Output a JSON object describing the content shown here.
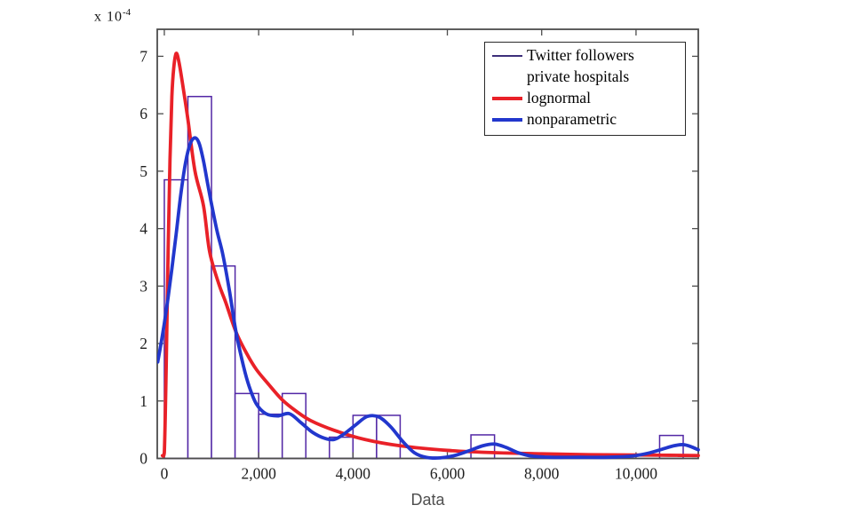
{
  "chart_data": {
    "type": "bar",
    "subtype": "histogram-with-fit-lines",
    "title": "",
    "xlabel": "Data",
    "offset_label": {
      "prefix": "x 10",
      "exponent": "-4"
    },
    "xlim": [
      -150,
      11320
    ],
    "ylim": [
      0,
      7.47
    ],
    "x_ticks": [
      0,
      2000,
      4000,
      6000,
      8000,
      10000
    ],
    "x_tick_labels": [
      "0",
      "2,000",
      "4,000",
      "6,000",
      "8,000",
      "10,000"
    ],
    "y_ticks": [
      0,
      1,
      2,
      3,
      4,
      5,
      6,
      7
    ],
    "y_tick_labels": [
      "0",
      "1",
      "2",
      "3",
      "4",
      "5",
      "6",
      "7"
    ],
    "y_unit_scale": "1e-4",
    "grid": false,
    "axis_color": "#4d4d4d",
    "tick_label_color": "#1f1f1f",
    "histogram": {
      "name": "Twitter followers private hospitals",
      "bin_start": 0,
      "bin_width": 500,
      "heights": [
        4.85,
        6.3,
        3.35,
        1.13,
        0.77,
        1.13,
        0,
        0.37,
        0.75,
        0.75,
        0,
        0,
        0,
        0.41,
        0,
        0,
        0,
        0,
        0,
        0,
        0,
        0.4
      ],
      "edge_color": "#5227a5",
      "face_color": "#ffffff"
    },
    "series": [
      {
        "name": "lognormal",
        "color": "#e92128",
        "line_width": 3.8,
        "points": [
          [
            -40,
            0.05
          ],
          [
            0,
            0.1
          ],
          [
            40,
            1.6
          ],
          [
            80,
            3.6
          ],
          [
            120,
            5.2
          ],
          [
            160,
            6.3
          ],
          [
            200,
            6.8
          ],
          [
            250,
            7.05
          ],
          [
            310,
            6.9
          ],
          [
            400,
            6.45
          ],
          [
            500,
            5.9
          ],
          [
            650,
            5.0
          ],
          [
            830,
            4.4
          ],
          [
            960,
            3.6
          ],
          [
            1150,
            3.05
          ],
          [
            1300,
            2.72
          ],
          [
            1520,
            2.2
          ],
          [
            1750,
            1.82
          ],
          [
            1950,
            1.55
          ],
          [
            2200,
            1.3
          ],
          [
            2500,
            1.02
          ],
          [
            2800,
            0.82
          ],
          [
            3100,
            0.66
          ],
          [
            3600,
            0.49
          ],
          [
            4250,
            0.33
          ],
          [
            5000,
            0.22
          ],
          [
            6000,
            0.14
          ],
          [
            7000,
            0.1
          ],
          [
            8000,
            0.08
          ],
          [
            9000,
            0.065
          ],
          [
            10000,
            0.06
          ],
          [
            10700,
            0.055
          ],
          [
            11320,
            0.05
          ]
        ]
      },
      {
        "name": "nonparametric",
        "color": "#2237cd",
        "line_width": 3.8,
        "points": [
          [
            -140,
            1.68
          ],
          [
            -70,
            2.0
          ],
          [
            0,
            2.35
          ],
          [
            80,
            2.8
          ],
          [
            160,
            3.3
          ],
          [
            250,
            3.9
          ],
          [
            350,
            4.6
          ],
          [
            450,
            5.15
          ],
          [
            550,
            5.48
          ],
          [
            650,
            5.58
          ],
          [
            740,
            5.48
          ],
          [
            830,
            5.18
          ],
          [
            910,
            4.82
          ],
          [
            1000,
            4.43
          ],
          [
            1120,
            3.95
          ],
          [
            1240,
            3.55
          ],
          [
            1380,
            2.92
          ],
          [
            1520,
            2.2
          ],
          [
            1680,
            1.6
          ],
          [
            1800,
            1.25
          ],
          [
            1950,
            0.95
          ],
          [
            2150,
            0.78
          ],
          [
            2400,
            0.74
          ],
          [
            2650,
            0.78
          ],
          [
            2900,
            0.62
          ],
          [
            3150,
            0.45
          ],
          [
            3400,
            0.35
          ],
          [
            3600,
            0.33
          ],
          [
            3800,
            0.42
          ],
          [
            4050,
            0.58
          ],
          [
            4300,
            0.73
          ],
          [
            4550,
            0.72
          ],
          [
            4800,
            0.55
          ],
          [
            5050,
            0.3
          ],
          [
            5300,
            0.1
          ],
          [
            5550,
            0.02
          ],
          [
            5850,
            0.01
          ],
          [
            6150,
            0.05
          ],
          [
            6450,
            0.13
          ],
          [
            6750,
            0.22
          ],
          [
            7000,
            0.25
          ],
          [
            7250,
            0.19
          ],
          [
            7500,
            0.1
          ],
          [
            7800,
            0.04
          ],
          [
            8200,
            0.02
          ],
          [
            8800,
            0.02
          ],
          [
            9400,
            0.02
          ],
          [
            9900,
            0.04
          ],
          [
            10250,
            0.09
          ],
          [
            10550,
            0.16
          ],
          [
            10800,
            0.22
          ],
          [
            11000,
            0.24
          ],
          [
            11150,
            0.21
          ],
          [
            11320,
            0.15
          ]
        ]
      }
    ],
    "legend": {
      "position": "top-right",
      "entries": [
        {
          "label_lines": [
            "Twitter followers",
            "private hospitals"
          ],
          "swatch_color": "#3d2f7a",
          "swatch_thickness": 1.5
        },
        {
          "label_lines": [
            "lognormal"
          ],
          "swatch_color": "#e92128",
          "swatch_thickness": 4
        },
        {
          "label_lines": [
            "nonparametric"
          ],
          "swatch_color": "#2237cd",
          "swatch_thickness": 4
        }
      ]
    }
  }
}
